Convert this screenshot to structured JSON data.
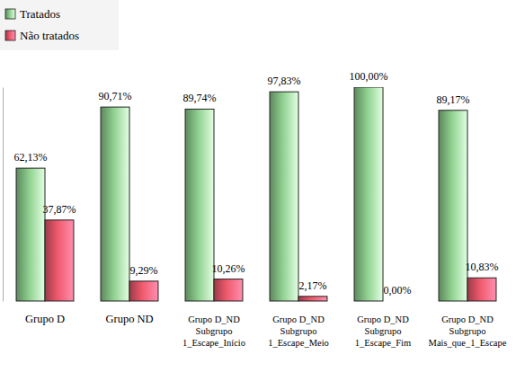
{
  "chart_data": {
    "type": "bar",
    "categories": [
      "Grupo D",
      "Grupo ND",
      "Grupo D_ND\nSubgrupo\n1_Escape_Início",
      "Grupo D_ND\nSubgrupo\n1_Escape_Meio",
      "Grupo D_ND\nSubgrupo\n1_Escape_Fim",
      "Grupo D_ND\nSubgrupo\nMais_que_1_Escape"
    ],
    "series": [
      {
        "name": "Tratados",
        "color": "#8fd08f",
        "values": [
          62.13,
          90.71,
          89.74,
          97.83,
          100.0,
          89.17
        ],
        "value_labels": [
          "62,13%",
          "90,71%",
          "89,74%",
          "97,83%",
          "100,00%",
          "89,17%"
        ]
      },
      {
        "name": "Não tratados",
        "color": "#f05a6e",
        "values": [
          37.87,
          9.29,
          10.26,
          2.17,
          0.0,
          10.83
        ],
        "value_labels": [
          "37,87%",
          "9,29%",
          "10,26%",
          "2,17%",
          "0,00%",
          "10,83%"
        ]
      }
    ],
    "ylim": [
      0,
      100
    ],
    "tick_labels": "x",
    "data_labels": true,
    "legend": "top-left",
    "grid": false
  }
}
